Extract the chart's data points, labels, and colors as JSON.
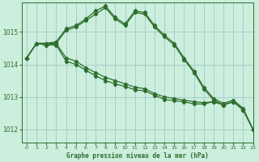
{
  "title": "Graphe pression niveau de la mer (hPa)",
  "bg_color": "#cceedd",
  "grid_color": "#aacccc",
  "line_color": "#2d6e2d",
  "xlim": [
    -0.5,
    23
  ],
  "ylim": [
    1011.6,
    1015.9
  ],
  "yticks": [
    1012,
    1013,
    1014,
    1015
  ],
  "xticks": [
    0,
    1,
    2,
    3,
    4,
    5,
    6,
    7,
    8,
    9,
    10,
    11,
    12,
    13,
    14,
    15,
    16,
    17,
    18,
    19,
    20,
    21,
    22,
    23
  ],
  "series": [
    [
      1014.2,
      1014.65,
      1014.6,
      1014.65,
      1015.05,
      1015.15,
      1015.35,
      1015.55,
      1015.75,
      1015.4,
      1015.2,
      1015.6,
      1015.55,
      1015.15,
      1014.85,
      1014.6,
      1014.15,
      1013.75,
      1013.25,
      1012.9,
      1012.75,
      1012.85,
      1012.6,
      1012.0
    ],
    [
      1014.2,
      1014.65,
      1014.65,
      1014.7,
      1015.1,
      1015.2,
      1015.4,
      1015.65,
      1015.8,
      1015.45,
      1015.25,
      1015.65,
      1015.6,
      1015.2,
      1014.9,
      1014.65,
      1014.2,
      1013.8,
      1013.3,
      1012.95,
      1012.8,
      1012.9,
      1012.65,
      1012.0
    ],
    [
      1014.2,
      1014.65,
      1014.65,
      1014.65,
      1014.2,
      1014.1,
      1013.9,
      1013.75,
      1013.6,
      1013.5,
      1013.4,
      1013.3,
      1013.25,
      1013.1,
      1013.0,
      1012.95,
      1012.9,
      1012.85,
      1012.82,
      1012.85,
      1012.75,
      1012.85,
      1012.6,
      1012.0
    ],
    [
      1014.2,
      1014.65,
      1014.6,
      1014.6,
      1014.1,
      1014.0,
      1013.82,
      1013.65,
      1013.5,
      1013.4,
      1013.32,
      1013.22,
      1013.18,
      1013.05,
      1012.92,
      1012.88,
      1012.85,
      1012.78,
      1012.78,
      1012.85,
      1012.75,
      1012.85,
      1012.6,
      1012.0
    ]
  ]
}
